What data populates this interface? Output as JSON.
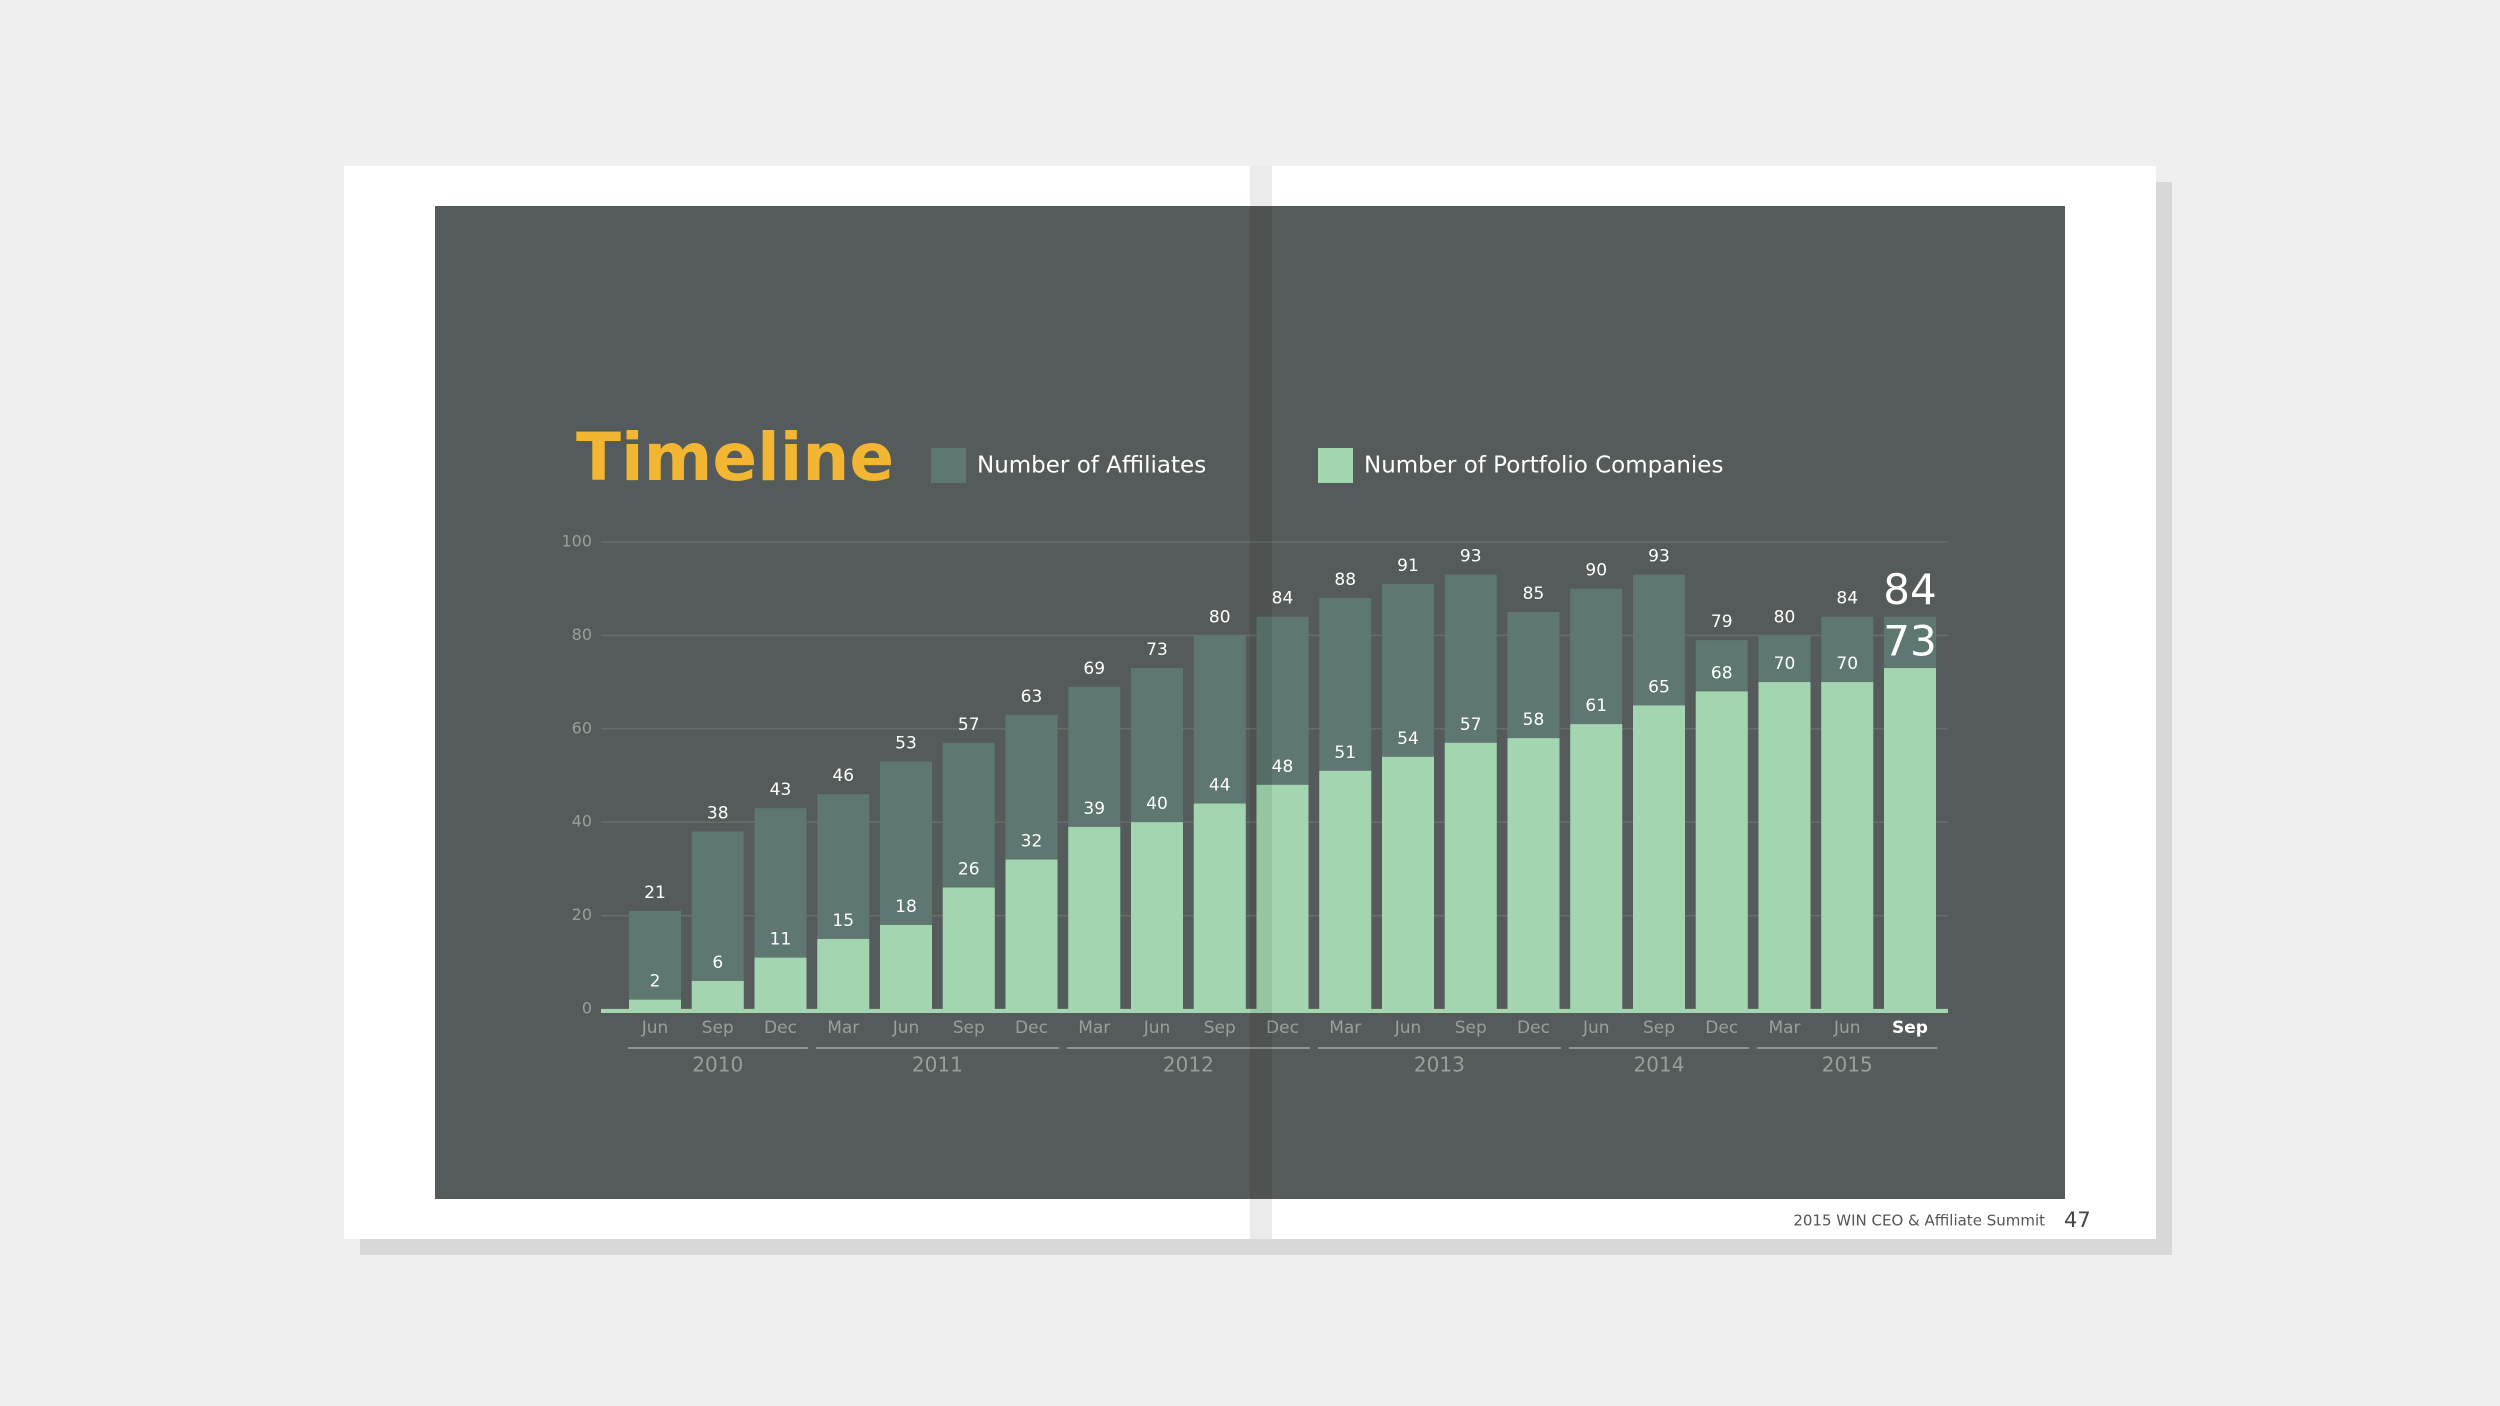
{
  "chart_data": {
    "type": "bar",
    "title": "Timeline",
    "categories": [
      "Jun",
      "Sep",
      "Dec",
      "Mar",
      "Jun",
      "Sep",
      "Dec",
      "Mar",
      "Jun",
      "Sep",
      "Dec",
      "Mar",
      "Jun",
      "Sep",
      "Dec",
      "Jun",
      "Sep",
      "Dec",
      "Mar",
      "Jun",
      "Sep"
    ],
    "groups": [
      {
        "label": "2010",
        "size": 3
      },
      {
        "label": "2011",
        "size": 4
      },
      {
        "label": "2012",
        "size": 4
      },
      {
        "label": "2013",
        "size": 4
      },
      {
        "label": "2014",
        "size": 3
      },
      {
        "label": "2015",
        "size": 3
      }
    ],
    "series": [
      {
        "name": "Number of Affiliates",
        "color": "#5e7770",
        "values": [
          21,
          38,
          43,
          46,
          53,
          57,
          63,
          69,
          73,
          80,
          84,
          88,
          91,
          93,
          85,
          90,
          93,
          79,
          80,
          84,
          84
        ]
      },
      {
        "name": "Number of Portfolio Companies",
        "color": "#a3d6b0",
        "values": [
          2,
          6,
          11,
          15,
          18,
          26,
          32,
          39,
          40,
          44,
          48,
          51,
          54,
          57,
          58,
          61,
          65,
          68,
          70,
          70,
          73
        ]
      }
    ],
    "ylim": [
      0,
      100
    ],
    "yticks": [
      0,
      20,
      40,
      60,
      80,
      100
    ],
    "grid": true
  },
  "footer": {
    "text": "2015 WIN CEO & Affiliate Summit",
    "page_number": 47
  }
}
